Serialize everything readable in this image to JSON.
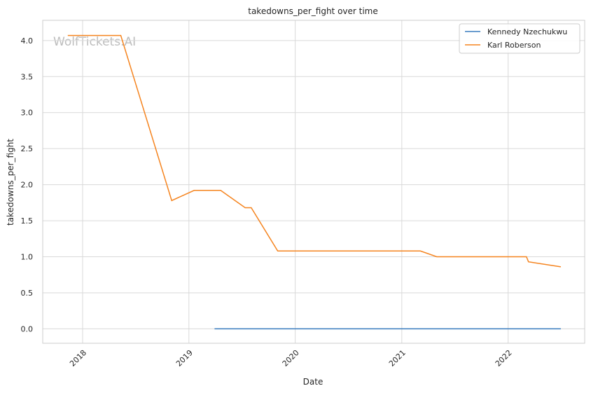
{
  "chart_data": {
    "type": "line",
    "title": "takedowns_per_fight over time",
    "xlabel": "Date",
    "ylabel": "takedowns_per_fight",
    "watermark": "WolfTickets.AI",
    "x_ticks": [
      "2018",
      "2019",
      "2020",
      "2021",
      "2022"
    ],
    "y_ticks": [
      "0.0",
      "0.5",
      "1.0",
      "1.5",
      "2.0",
      "2.5",
      "3.0",
      "3.5",
      "4.0"
    ],
    "xlim": [
      "2017-08-17",
      "2022-09-21"
    ],
    "ylim": [
      -0.2,
      4.28
    ],
    "grid": true,
    "legend_position": "top-right",
    "series": [
      {
        "name": "Kennedy Nzechukwu",
        "color": "#3a7dbf",
        "points": [
          [
            "2019-03-30",
            0.0
          ],
          [
            "2022-07-01",
            0.0
          ]
        ]
      },
      {
        "name": "Karl Roberson",
        "color": "#f5841f",
        "points": [
          [
            "2017-11-11",
            4.07
          ],
          [
            "2018-05-12",
            4.07
          ],
          [
            "2018-11-03",
            1.78
          ],
          [
            "2019-01-19",
            1.92
          ],
          [
            "2019-04-20",
            1.92
          ],
          [
            "2019-07-13",
            1.68
          ],
          [
            "2019-08-03",
            1.68
          ],
          [
            "2019-11-02",
            1.08
          ],
          [
            "2021-03-06",
            1.08
          ],
          [
            "2021-05-01",
            1.0
          ],
          [
            "2022-03-05",
            1.0
          ],
          [
            "2022-03-12",
            0.93
          ],
          [
            "2022-07-01",
            0.86
          ]
        ]
      }
    ]
  }
}
